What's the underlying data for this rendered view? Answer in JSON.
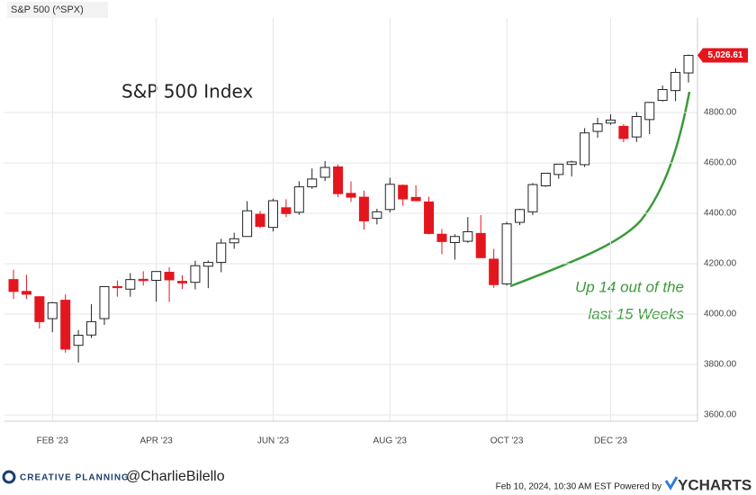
{
  "chart_data": {
    "type": "candlestick",
    "title": "S&P 500 (^SPX)",
    "annotation_title": "S&P 500 Index",
    "annotation_lines": [
      "Up 14 out of the",
      "last 15 Weeks"
    ],
    "categories": [
      null,
      null,
      null,
      "FEB '23",
      null,
      null,
      null,
      null,
      null,
      null,
      null,
      "APR '23",
      null,
      null,
      null,
      null,
      null,
      null,
      null,
      null,
      "JUN '23",
      null,
      null,
      null,
      null,
      null,
      null,
      null,
      null,
      "AUG '23",
      null,
      null,
      null,
      null,
      null,
      null,
      null,
      null,
      "OCT '23",
      null,
      null,
      null,
      null,
      null,
      null,
      null,
      "DEC '23",
      null,
      null,
      null,
      null,
      null,
      null
    ],
    "open": [
      4137,
      4090,
      4069,
      3982,
      4055,
      3876,
      3917,
      3982,
      4109,
      4099,
      4138,
      4134,
      4166,
      4130,
      4126,
      4190,
      4205,
      4283,
      4308,
      4396,
      4344,
      4422,
      4404,
      4505,
      4543,
      4584,
      4479,
      4464,
      4380,
      4415,
      4511,
      4463,
      4445,
      4317,
      4284,
      4289,
      4320,
      4218,
      4120,
      4364,
      4406,
      4509,
      4554,
      4594,
      4593,
      4725,
      4758,
      4745,
      4703,
      4772,
      4848,
      4887,
      4957
    ],
    "high": [
      4176,
      4156,
      4070,
      4048,
      4078,
      3937,
      4039,
      4110,
      4133,
      4163,
      4170,
      4170,
      4186,
      4154,
      4212,
      4213,
      4299,
      4323,
      4448,
      4409,
      4458,
      4456,
      4527,
      4578,
      4607,
      4594,
      4527,
      4490,
      4418,
      4541,
      4514,
      4511,
      4466,
      4338,
      4317,
      4385,
      4393,
      4259,
      4366,
      4418,
      4520,
      4560,
      4595,
      4609,
      4738,
      4779,
      4793,
      4754,
      4802,
      4842,
      4907,
      4975,
      5030
    ],
    "low": [
      4060,
      4060,
      3943,
      3928,
      3847,
      3808,
      3905,
      3957,
      4069,
      4069,
      4113,
      4049,
      4048,
      4099,
      4098,
      4103,
      4166,
      4259,
      4308,
      4341,
      4328,
      4385,
      4394,
      4497,
      4528,
      4464,
      4445,
      4335,
      4356,
      4403,
      4430,
      4448,
      4316,
      4238,
      4216,
      4283,
      4223,
      4104,
      4113,
      4353,
      4393,
      4505,
      4537,
      4546,
      4584,
      4700,
      4751,
      4682,
      4683,
      4714,
      4844,
      4845,
      4919
    ],
    "close": [
      4090,
      4079,
      3970,
      4045,
      3861,
      3916,
      3970,
      4109,
      4105,
      4137,
      4133,
      4169,
      4136,
      4124,
      4192,
      4205,
      4282,
      4299,
      4410,
      4348,
      4450,
      4399,
      4505,
      4536,
      4582,
      4478,
      4464,
      4370,
      4406,
      4515,
      4457,
      4450,
      4320,
      4288,
      4308,
      4327,
      4224,
      4117,
      4358,
      4415,
      4514,
      4559,
      4595,
      4604,
      4719,
      4755,
      4770,
      4697,
      4784,
      4840,
      4891,
      4959,
      5026.61
    ],
    "price_label": "5,026.61",
    "up_color": "#ffffff",
    "down_color": "#e3161e",
    "ylim": [
      3575,
      5175
    ],
    "yticks": [
      {
        "value": 3600,
        "label": "3600.00"
      },
      {
        "value": 3800,
        "label": "3800.00"
      },
      {
        "value": 4000,
        "label": "4000.00"
      },
      {
        "value": 4200,
        "label": "4200.00"
      },
      {
        "value": 4400,
        "label": "4400.00"
      },
      {
        "value": 4600,
        "label": "4600.00"
      },
      {
        "value": 4800,
        "label": "4800.00"
      }
    ],
    "grid": true
  },
  "footer": {
    "brand": "CREATIVE PLANNING",
    "handle": "@CharlieBilello",
    "timestamp": "Feb 10, 2024, 10:30 AM EST Powered by",
    "provider": "YCHARTS"
  }
}
